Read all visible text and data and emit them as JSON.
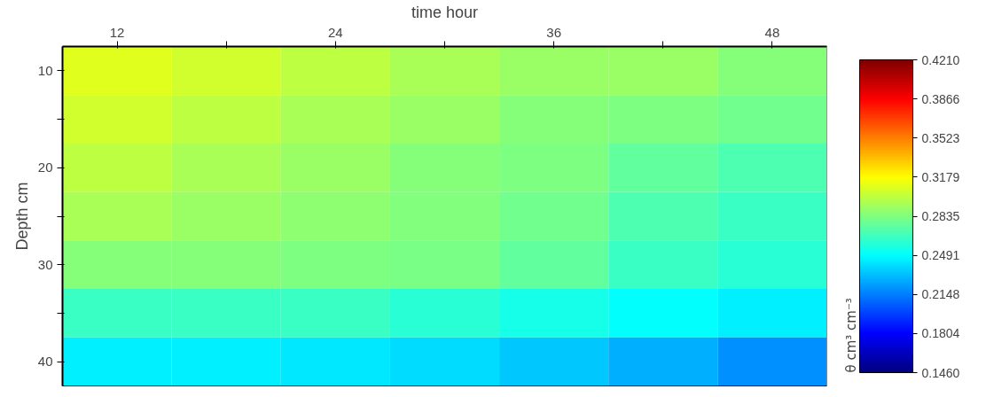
{
  "chart_data": {
    "type": "heatmap",
    "xlabel": "time hour",
    "ylabel": "Depth cm",
    "clabel": "θ cm³ cm⁻³",
    "categories": [
      "12",
      null,
      "24",
      null,
      "36",
      null,
      "48"
    ],
    "y_categories": [
      "10",
      null,
      "20",
      null,
      "30",
      null,
      "40"
    ],
    "cells": [
      [
        0.31,
        0.305,
        0.3,
        0.295,
        0.29,
        0.29,
        0.285
      ],
      [
        0.305,
        0.3,
        0.295,
        0.29,
        0.285,
        0.283,
        0.28
      ],
      [
        0.3,
        0.295,
        0.29,
        0.285,
        0.283,
        0.275,
        0.27
      ],
      [
        0.295,
        0.29,
        0.287,
        0.284,
        0.28,
        0.27,
        0.265
      ],
      [
        0.285,
        0.285,
        0.283,
        0.282,
        0.275,
        0.265,
        0.26
      ],
      [
        0.265,
        0.265,
        0.265,
        0.26,
        0.255,
        0.25,
        0.245
      ],
      [
        0.245,
        0.245,
        0.243,
        0.24,
        0.235,
        0.228,
        0.22
      ]
    ],
    "clim": [
      0.146,
      0.421
    ],
    "cticks": [
      {
        "value": 0.146,
        "label": "0.1460"
      },
      0.1804,
      0.2148,
      0.2491,
      0.2835,
      0.3179,
      0.3523,
      0.3866,
      {
        "value": 0.421,
        "label": "0.4210"
      }
    ]
  }
}
